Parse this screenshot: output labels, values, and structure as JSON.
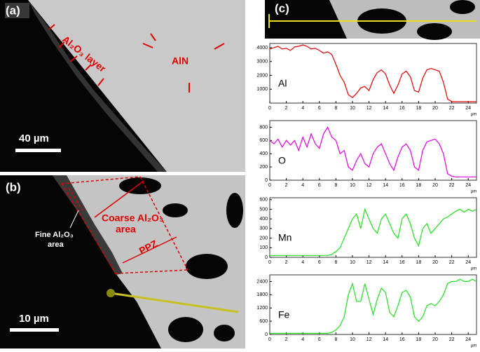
{
  "panels": {
    "a": {
      "label": "(a)",
      "annotations": [
        "Al₂O₃ layer",
        "AlN"
      ],
      "scale_bar": "40 µm"
    },
    "b": {
      "label": "(b)",
      "coarse": [
        "Coarse Al₂O₃",
        "area"
      ],
      "fine": [
        "Fine Al₂O₃",
        "area"
      ],
      "ppz": "PPZ",
      "scale_bar": "10 µm"
    },
    "c": {
      "label": "(c)"
    }
  },
  "chart_data": [
    {
      "type": "line",
      "x_unit": "µm",
      "xlim": [
        0,
        25
      ],
      "xticks": [
        0,
        2,
        4,
        6,
        8,
        10,
        12,
        14,
        16,
        18,
        20,
        22,
        24
      ],
      "ylim": [
        0,
        4300
      ],
      "yticks": [
        1000,
        2000,
        3000,
        4000
      ],
      "x": [
        0,
        0.5,
        1,
        1.5,
        2,
        2.5,
        3,
        3.5,
        4,
        4.5,
        5,
        5.5,
        6,
        6.5,
        7,
        7.5,
        8,
        8.5,
        9,
        9.5,
        10,
        10.5,
        11,
        11.5,
        12,
        12.5,
        13,
        13.5,
        14,
        14.5,
        15,
        15.5,
        16,
        16.5,
        17,
        17.5,
        18,
        18.5,
        19,
        19.5,
        20,
        20.5,
        21,
        21.5,
        22,
        22.5,
        23,
        23.5,
        24,
        24.5,
        25
      ],
      "series": [
        {
          "name": "Al",
          "color": "#e00000",
          "values": [
            3900,
            4000,
            4100,
            3900,
            3950,
            3800,
            4050,
            4100,
            4200,
            4100,
            3900,
            3950,
            3800,
            3600,
            3700,
            3500,
            2800,
            2000,
            1500,
            600,
            400,
            700,
            1100,
            1200,
            900,
            1700,
            2200,
            2400,
            2100,
            1300,
            700,
            1300,
            2100,
            2300,
            1900,
            900,
            800,
            1800,
            2400,
            2500,
            2400,
            2300,
            1500,
            300,
            100,
            100,
            100,
            100,
            100,
            100,
            100
          ]
        }
      ]
    },
    {
      "type": "line",
      "x_unit": "µm",
      "xlim": [
        0,
        25
      ],
      "xticks": [
        0,
        2,
        4,
        6,
        8,
        10,
        12,
        14,
        16,
        18,
        20,
        22,
        24
      ],
      "ylim": [
        0,
        900
      ],
      "yticks": [
        0,
        200,
        400,
        600,
        800
      ],
      "x": [
        0,
        0.5,
        1,
        1.5,
        2,
        2.5,
        3,
        3.5,
        4,
        4.5,
        5,
        5.5,
        6,
        6.5,
        7,
        7.5,
        8,
        8.5,
        9,
        9.5,
        10,
        10.5,
        11,
        11.5,
        12,
        12.5,
        13,
        13.5,
        14,
        14.5,
        15,
        15.5,
        16,
        16.5,
        17,
        17.5,
        18,
        18.5,
        19,
        19.5,
        20,
        20.5,
        21,
        21.5,
        22,
        22.5,
        23,
        23.5,
        24,
        24.5,
        25
      ],
      "series": [
        {
          "name": "O",
          "color": "#e000e0",
          "values": [
            600,
            550,
            620,
            500,
            600,
            530,
            600,
            450,
            650,
            500,
            700,
            550,
            480,
            700,
            800,
            650,
            600,
            400,
            450,
            200,
            150,
            300,
            400,
            250,
            200,
            400,
            500,
            550,
            400,
            250,
            150,
            350,
            500,
            550,
            450,
            200,
            150,
            450,
            580,
            600,
            620,
            550,
            400,
            100,
            60,
            50,
            50,
            50,
            50,
            50,
            50
          ]
        }
      ]
    },
    {
      "type": "line",
      "x_unit": "µm",
      "xlim": [
        0,
        25
      ],
      "xticks": [
        0,
        2,
        4,
        6,
        8,
        10,
        12,
        14,
        16,
        18,
        20,
        22,
        24
      ],
      "ylim": [
        0,
        620
      ],
      "yticks": [
        0,
        100,
        200,
        300,
        400,
        500,
        600
      ],
      "x": [
        0,
        0.5,
        1,
        1.5,
        2,
        2.5,
        3,
        3.5,
        4,
        4.5,
        5,
        5.5,
        6,
        6.5,
        7,
        7.5,
        8,
        8.5,
        9,
        9.5,
        10,
        10.5,
        11,
        11.5,
        12,
        12.5,
        13,
        13.5,
        14,
        14.5,
        15,
        15.5,
        16,
        16.5,
        17,
        17.5,
        18,
        18.5,
        19,
        19.5,
        20,
        20.5,
        21,
        21.5,
        22,
        22.5,
        23,
        23.5,
        24,
        24.5,
        25
      ],
      "series": [
        {
          "name": "Mn",
          "color": "#20e020",
          "values": [
            20,
            20,
            20,
            20,
            20,
            20,
            20,
            20,
            20,
            20,
            20,
            20,
            20,
            20,
            20,
            30,
            60,
            100,
            200,
            300,
            400,
            450,
            300,
            500,
            400,
            300,
            250,
            400,
            450,
            350,
            250,
            200,
            400,
            450,
            350,
            200,
            120,
            300,
            350,
            250,
            300,
            350,
            400,
            420,
            450,
            480,
            500,
            470,
            500,
            480,
            500
          ]
        }
      ]
    },
    {
      "type": "line",
      "x_unit": "µm",
      "xlim": [
        0,
        25
      ],
      "xticks": [
        0,
        2,
        4,
        6,
        8,
        10,
        12,
        14,
        16,
        18,
        20,
        22,
        24
      ],
      "ylim": [
        0,
        2700
      ],
      "yticks": [
        0,
        600,
        1200,
        1800,
        2400
      ],
      "x": [
        0,
        0.5,
        1,
        1.5,
        2,
        2.5,
        3,
        3.5,
        4,
        4.5,
        5,
        5.5,
        6,
        6.5,
        7,
        7.5,
        8,
        8.5,
        9,
        9.5,
        10,
        10.5,
        11,
        11.5,
        12,
        12.5,
        13,
        13.5,
        14,
        14.5,
        15,
        15.5,
        16,
        16.5,
        17,
        17.5,
        18,
        18.5,
        19,
        19.5,
        20,
        20.5,
        21,
        21.5,
        22,
        22.5,
        23,
        23.5,
        24,
        24.5,
        25
      ],
      "series": [
        {
          "name": "Fe",
          "color": "#20e020",
          "values": [
            50,
            50,
            50,
            50,
            50,
            50,
            50,
            50,
            50,
            50,
            50,
            50,
            50,
            50,
            50,
            100,
            200,
            400,
            800,
            1800,
            2300,
            1500,
            1500,
            2300,
            1600,
            900,
            1600,
            2100,
            1900,
            1000,
            800,
            1300,
            1900,
            2000,
            1700,
            800,
            600,
            800,
            1300,
            1400,
            1300,
            1500,
            1800,
            2300,
            2400,
            2400,
            2500,
            2400,
            2400,
            2500,
            2400
          ]
        }
      ]
    }
  ]
}
